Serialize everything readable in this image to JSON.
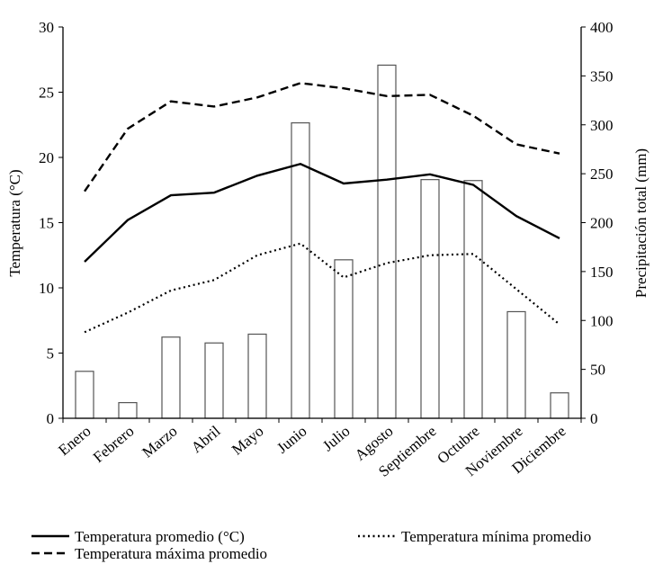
{
  "chart_data": {
    "type": "bar+line",
    "categories": [
      "Enero",
      "Febrero",
      "Marzo",
      "Abril",
      "Mayo",
      "Junio",
      "Julio",
      "Agosto",
      "Septiembre",
      "Octubre",
      "Noviembre",
      "Diciembre"
    ],
    "left_axis": {
      "label": "Temperatura (°C)",
      "range": [
        0,
        30
      ],
      "ticks": [
        0,
        5,
        10,
        15,
        20,
        25,
        30
      ]
    },
    "right_axis": {
      "label": "Precipitación total (mm)",
      "range": [
        0,
        400
      ],
      "ticks": [
        0,
        50,
        100,
        150,
        200,
        250,
        300,
        350,
        400
      ]
    },
    "bars": {
      "name": "Precipitación total (mm)",
      "axis": "right",
      "values": [
        48,
        16,
        83,
        77,
        86,
        302,
        162,
        361,
        244,
        243,
        109,
        26
      ]
    },
    "series": [
      {
        "name": "Temperatura promedio  (°C)",
        "style": "solid",
        "axis": "left",
        "values": [
          12.0,
          15.2,
          17.1,
          17.3,
          18.6,
          19.5,
          18.0,
          18.3,
          18.7,
          17.9,
          15.5,
          13.8
        ]
      },
      {
        "name": "Temperatura mínima promedio",
        "style": "dotted",
        "axis": "left",
        "values": [
          6.6,
          8.1,
          9.8,
          10.6,
          12.5,
          13.4,
          10.8,
          11.9,
          12.5,
          12.6,
          9.9,
          7.2
        ]
      },
      {
        "name": "Temperatura máxima promedio",
        "style": "dashed",
        "axis": "left",
        "values": [
          17.4,
          22.2,
          24.3,
          23.9,
          24.6,
          25.7,
          25.3,
          24.7,
          24.8,
          23.2,
          21.0,
          20.3
        ]
      }
    ],
    "legend": "bottom",
    "grid": false
  }
}
